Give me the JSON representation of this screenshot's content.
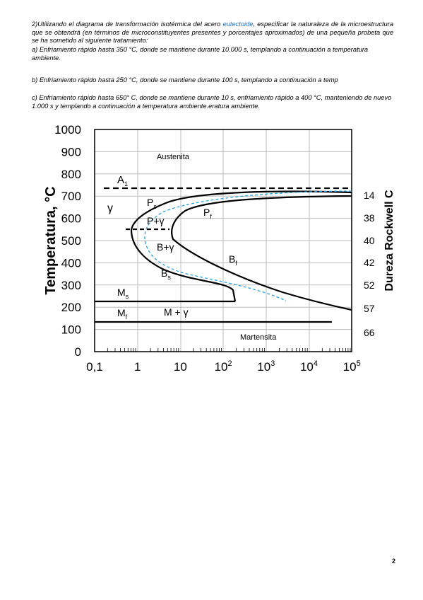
{
  "question": {
    "intro_before": "2)Utilizando el diagrama de transformación isotérmica del acero ",
    "intro_link": "eutectoide",
    "intro_after": ", especificar la naturaleza de la microestructura que se obtendrá (en términos de microconstituyentes presentes y porcentajes aproximados) de una pequeña probeta que se ha sometido al siguiente tratamiento:",
    "items": [
      "a) Enfriamiento rápido hasta 350 °C, donde se mantiene durante 10.000 s, templando a continuación a temperatura ambiente.",
      "b) Enfriamiento rápido hasta 250 °C, donde se mantiene durante 100 s, templando a continuación a temp",
      "c) Enfriamiento rápido hasta 650° C, donde se mantiene durante 10 s, enfriamiento rápido a 400 °C, manteniendo de nuevo 1.000 s y templando a continuación a temperatura ambiente.eratura ambiente."
    ]
  },
  "figure": {
    "y_title": "Temperatura, °C",
    "y2_title": "Dureza Rockwell C",
    "y_ticks": [
      "0",
      "100",
      "200",
      "300",
      "400",
      "500",
      "600",
      "700",
      "800",
      "900",
      "1000"
    ],
    "y2_ticks": [
      "14",
      "38",
      "40",
      "42",
      "52",
      "57",
      "66"
    ],
    "x_ticks": [
      {
        "base": "0,1",
        "exp": ""
      },
      {
        "base": "1",
        "exp": ""
      },
      {
        "base": "10",
        "exp": ""
      },
      {
        "base": "10",
        "exp": "2"
      },
      {
        "base": "10",
        "exp": "3"
      },
      {
        "base": "10",
        "exp": "4"
      },
      {
        "base": "10",
        "exp": "5"
      }
    ],
    "labels": [
      {
        "text": "Austenita",
        "sub": ""
      },
      {
        "text": "A",
        "sub": "1"
      },
      {
        "text": "γ",
        "sub": ""
      },
      {
        "text": "P",
        "sub": "s"
      },
      {
        "text": "P",
        "sub": "f"
      },
      {
        "text": "P+γ",
        "sub": ""
      },
      {
        "text": "B+γ",
        "sub": ""
      },
      {
        "text": "B",
        "sub": "f"
      },
      {
        "text": "B",
        "sub": "s"
      },
      {
        "text": "M",
        "sub": "s"
      },
      {
        "text": "M",
        "sub": "f"
      },
      {
        "text": "M + γ",
        "sub": ""
      },
      {
        "text": "Martensita",
        "sub": ""
      }
    ]
  },
  "page_number": "2"
}
